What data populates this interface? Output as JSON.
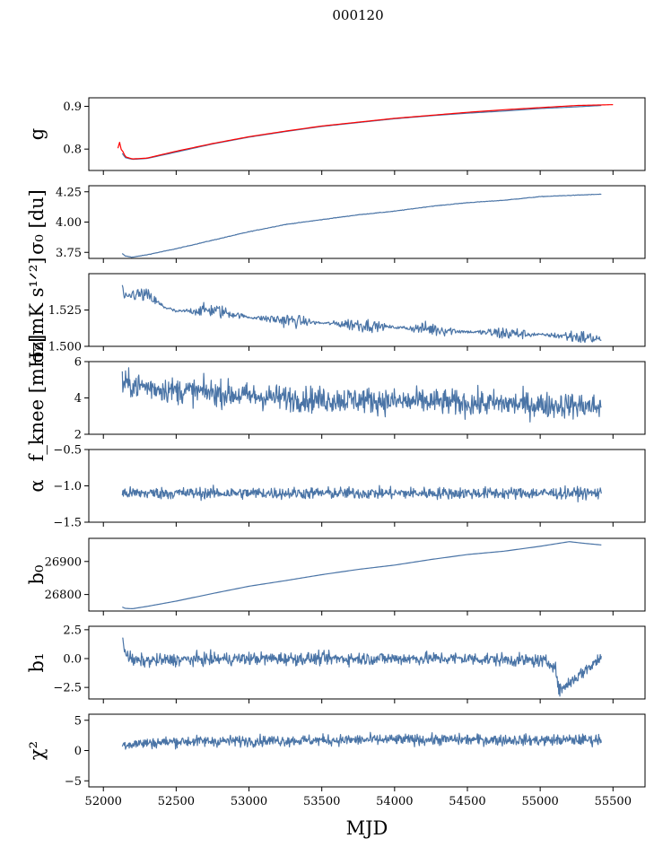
{
  "figure_title": "000120",
  "colors": {
    "primary_series": "#4a74a6",
    "fit_series": "#ff0000",
    "frame": "#000000"
  },
  "chart_data": [
    {
      "type": "line",
      "ylabel": "g",
      "ylim": [
        0.75,
        0.92
      ],
      "yticks": [
        0.8,
        0.9
      ],
      "ytick_labels": [
        "0.8",
        "0.9"
      ],
      "series": [
        {
          "color": "#4a74a6",
          "x": [
            52130,
            52150,
            52200,
            52300,
            52500,
            52750,
            53000,
            53250,
            53500,
            53750,
            54000,
            54250,
            54500,
            54750,
            55000,
            55200,
            55420
          ],
          "y": [
            0.79,
            0.78,
            0.776,
            0.778,
            0.793,
            0.812,
            0.828,
            0.841,
            0.853,
            0.862,
            0.871,
            0.878,
            0.884,
            0.889,
            0.895,
            0.898,
            0.902
          ]
        },
        {
          "color": "#ff0000",
          "x": [
            52100,
            52110,
            52120,
            52130,
            52150,
            52200,
            52300,
            52500,
            52750,
            53000,
            53250,
            53500,
            53750,
            54000,
            54250,
            54500,
            54750,
            55000,
            55250,
            55500
          ],
          "y": [
            0.796,
            0.815,
            0.79,
            0.8,
            0.782,
            0.777,
            0.779,
            0.795,
            0.813,
            0.829,
            0.842,
            0.854,
            0.863,
            0.872,
            0.879,
            0.886,
            0.892,
            0.897,
            0.902,
            0.904
          ]
        }
      ]
    },
    {
      "type": "line",
      "ylabel": "σ₀ [du]",
      "ylim": [
        3.7,
        4.3
      ],
      "yticks": [
        3.75,
        4.0,
        4.25
      ],
      "ytick_labels": [
        "3.75",
        "4.00",
        "4.25"
      ],
      "series": [
        {
          "color": "#4a74a6",
          "x": [
            52130,
            52150,
            52200,
            52300,
            52500,
            52750,
            53000,
            53250,
            53500,
            53750,
            54000,
            54250,
            54500,
            54750,
            55000,
            55200,
            55420
          ],
          "y": [
            3.74,
            3.72,
            3.71,
            3.73,
            3.78,
            3.85,
            3.92,
            3.98,
            4.02,
            4.06,
            4.09,
            4.13,
            4.16,
            4.18,
            4.21,
            4.22,
            4.23
          ]
        }
      ]
    },
    {
      "type": "line",
      "ylabel": "σ₀[mK s¹ᐟ²]",
      "ylim": [
        1.5,
        1.55
      ],
      "yticks": [
        1.5,
        1.525
      ],
      "ytick_labels": [
        "1.500",
        "1.525"
      ],
      "series": [
        {
          "color": "#4a74a6",
          "x": [
            52130,
            52150,
            52200,
            52300,
            52400,
            52500,
            52750,
            53000,
            53250,
            53500,
            53750,
            54000,
            54250,
            54500,
            54750,
            55000,
            55200,
            55420
          ],
          "y": [
            1.54,
            1.532,
            1.536,
            1.535,
            1.528,
            1.524,
            1.525,
            1.52,
            1.518,
            1.516,
            1.515,
            1.513,
            1.512,
            1.51,
            1.509,
            1.508,
            1.507,
            1.505
          ]
        }
      ]
    },
    {
      "type": "line",
      "ylabel": "f_knee [mHz]",
      "ylim": [
        2,
        6
      ],
      "yticks": [
        2,
        4,
        6
      ],
      "ytick_labels": [
        "2",
        "4",
        "6"
      ],
      "series": [
        {
          "color": "#4a74a6",
          "x": [
            52130,
            52300,
            52500,
            52750,
            53000,
            53250,
            53500,
            53750,
            54000,
            54250,
            54500,
            54750,
            55000,
            55200,
            55420
          ],
          "y": [
            4.8,
            4.6,
            4.4,
            4.3,
            4.1,
            4.0,
            3.9,
            3.9,
            3.8,
            3.8,
            3.7,
            3.7,
            3.6,
            3.6,
            3.5
          ]
        }
      ]
    },
    {
      "type": "line",
      "ylabel": "α",
      "ylim": [
        -1.5,
        -0.5
      ],
      "yticks": [
        -1.5,
        -1.0,
        -0.5
      ],
      "ytick_labels": [
        "−1.5",
        "−1.0",
        "−0.5"
      ],
      "series": [
        {
          "color": "#4a74a6",
          "x": [
            52130,
            52500,
            53000,
            53500,
            54000,
            54500,
            55000,
            55420
          ],
          "y": [
            -1.1,
            -1.1,
            -1.1,
            -1.1,
            -1.1,
            -1.1,
            -1.1,
            -1.1
          ]
        }
      ]
    },
    {
      "type": "line",
      "ylabel": "b₀",
      "ylim": [
        26750,
        26970
      ],
      "yticks": [
        26800,
        26900
      ],
      "ytick_labels": [
        "26800",
        "26900"
      ],
      "series": [
        {
          "color": "#4a74a6",
          "x": [
            52130,
            52150,
            52200,
            52300,
            52500,
            52750,
            53000,
            53250,
            53500,
            53750,
            54000,
            54250,
            54500,
            54750,
            55000,
            55200,
            55300,
            55420
          ],
          "y": [
            26762,
            26758,
            26757,
            26764,
            26780,
            26803,
            26825,
            26842,
            26860,
            26876,
            26889,
            26906,
            26921,
            26931,
            26946,
            26960,
            26955,
            26950
          ]
        }
      ]
    },
    {
      "type": "line",
      "ylabel": "b₁",
      "ylim": [
        -3.5,
        2.8
      ],
      "yticks": [
        -2.5,
        0.0,
        2.5
      ],
      "ytick_labels": [
        "−2.5",
        "0.0",
        "2.5"
      ],
      "series": [
        {
          "color": "#4a74a6",
          "x": [
            52130,
            52150,
            52200,
            52300,
            52500,
            53000,
            53500,
            54000,
            54500,
            55000,
            55100,
            55130,
            55420
          ],
          "y": [
            2.0,
            0.6,
            -0.2,
            -0.2,
            -0.1,
            0.0,
            0.0,
            0.0,
            0.0,
            -0.2,
            -0.5,
            -2.8,
            0.1
          ]
        }
      ]
    },
    {
      "type": "line",
      "ylabel": "χ²",
      "ylim": [
        -6,
        6
      ],
      "yticks": [
        -5,
        0,
        5
      ],
      "ytick_labels": [
        "−5",
        "0",
        "5"
      ],
      "xlim": [
        51900,
        55720
      ],
      "xticks": [
        52000,
        52500,
        53000,
        53500,
        54000,
        54500,
        55000,
        55500
      ],
      "xtick_labels": [
        "52000",
        "52500",
        "53000",
        "53500",
        "54000",
        "54500",
        "55000",
        "55500"
      ],
      "xlabel": "MJD",
      "series": [
        {
          "color": "#4a74a6",
          "x": [
            52130,
            52500,
            53000,
            53500,
            54000,
            54500,
            55000,
            55420
          ],
          "y": [
            1.0,
            1.5,
            1.6,
            1.7,
            1.8,
            1.8,
            1.7,
            1.8
          ]
        }
      ]
    }
  ]
}
